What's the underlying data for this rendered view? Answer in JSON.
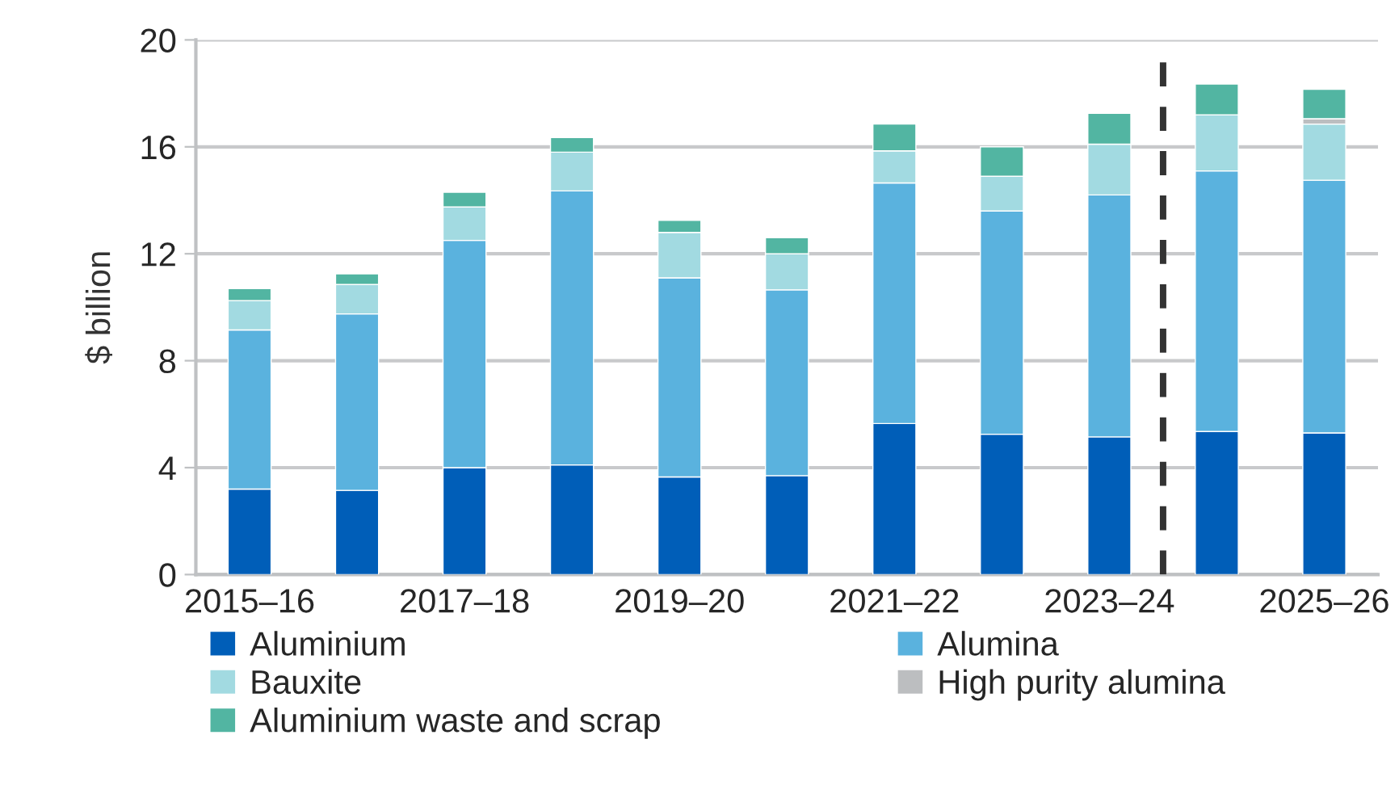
{
  "chart_data": {
    "type": "bar",
    "stacked": true,
    "ylabel": "$ billion",
    "categories": [
      "2015–16",
      null,
      "2017–18",
      null,
      "2019–20",
      null,
      "2021–22",
      null,
      "2023–24",
      null,
      "2025–26"
    ],
    "series": [
      {
        "name": "Aluminium",
        "color": "#005eb8",
        "values": [
          3.2,
          3.15,
          4.0,
          4.1,
          3.65,
          3.7,
          5.65,
          5.25,
          5.15,
          5.35,
          5.3
        ]
      },
      {
        "name": "Alumina",
        "color": "#5ab2de",
        "values": [
          5.95,
          6.6,
          8.5,
          10.25,
          7.45,
          6.95,
          9.0,
          8.35,
          9.05,
          9.75,
          9.45
        ]
      },
      {
        "name": "Bauxite",
        "color": "#a2dae1",
        "values": [
          1.1,
          1.1,
          1.25,
          1.45,
          1.7,
          1.35,
          1.2,
          1.3,
          1.9,
          2.1,
          2.1
        ]
      },
      {
        "name": "High purity alumina",
        "color": "#bcbec0",
        "values": [
          null,
          null,
          null,
          null,
          null,
          null,
          null,
          null,
          null,
          null,
          0.2
        ]
      },
      {
        "name": "Aluminium waste and scrap",
        "color": "#52b5a2",
        "values": [
          0.45,
          0.4,
          0.55,
          0.55,
          0.45,
          0.6,
          1.0,
          1.1,
          1.15,
          1.15,
          1.1
        ]
      }
    ],
    "ylim": [
      0,
      20
    ],
    "yticks": [
      0,
      4,
      8,
      12,
      16,
      20
    ],
    "grid": "y",
    "legend": "bottom"
  }
}
